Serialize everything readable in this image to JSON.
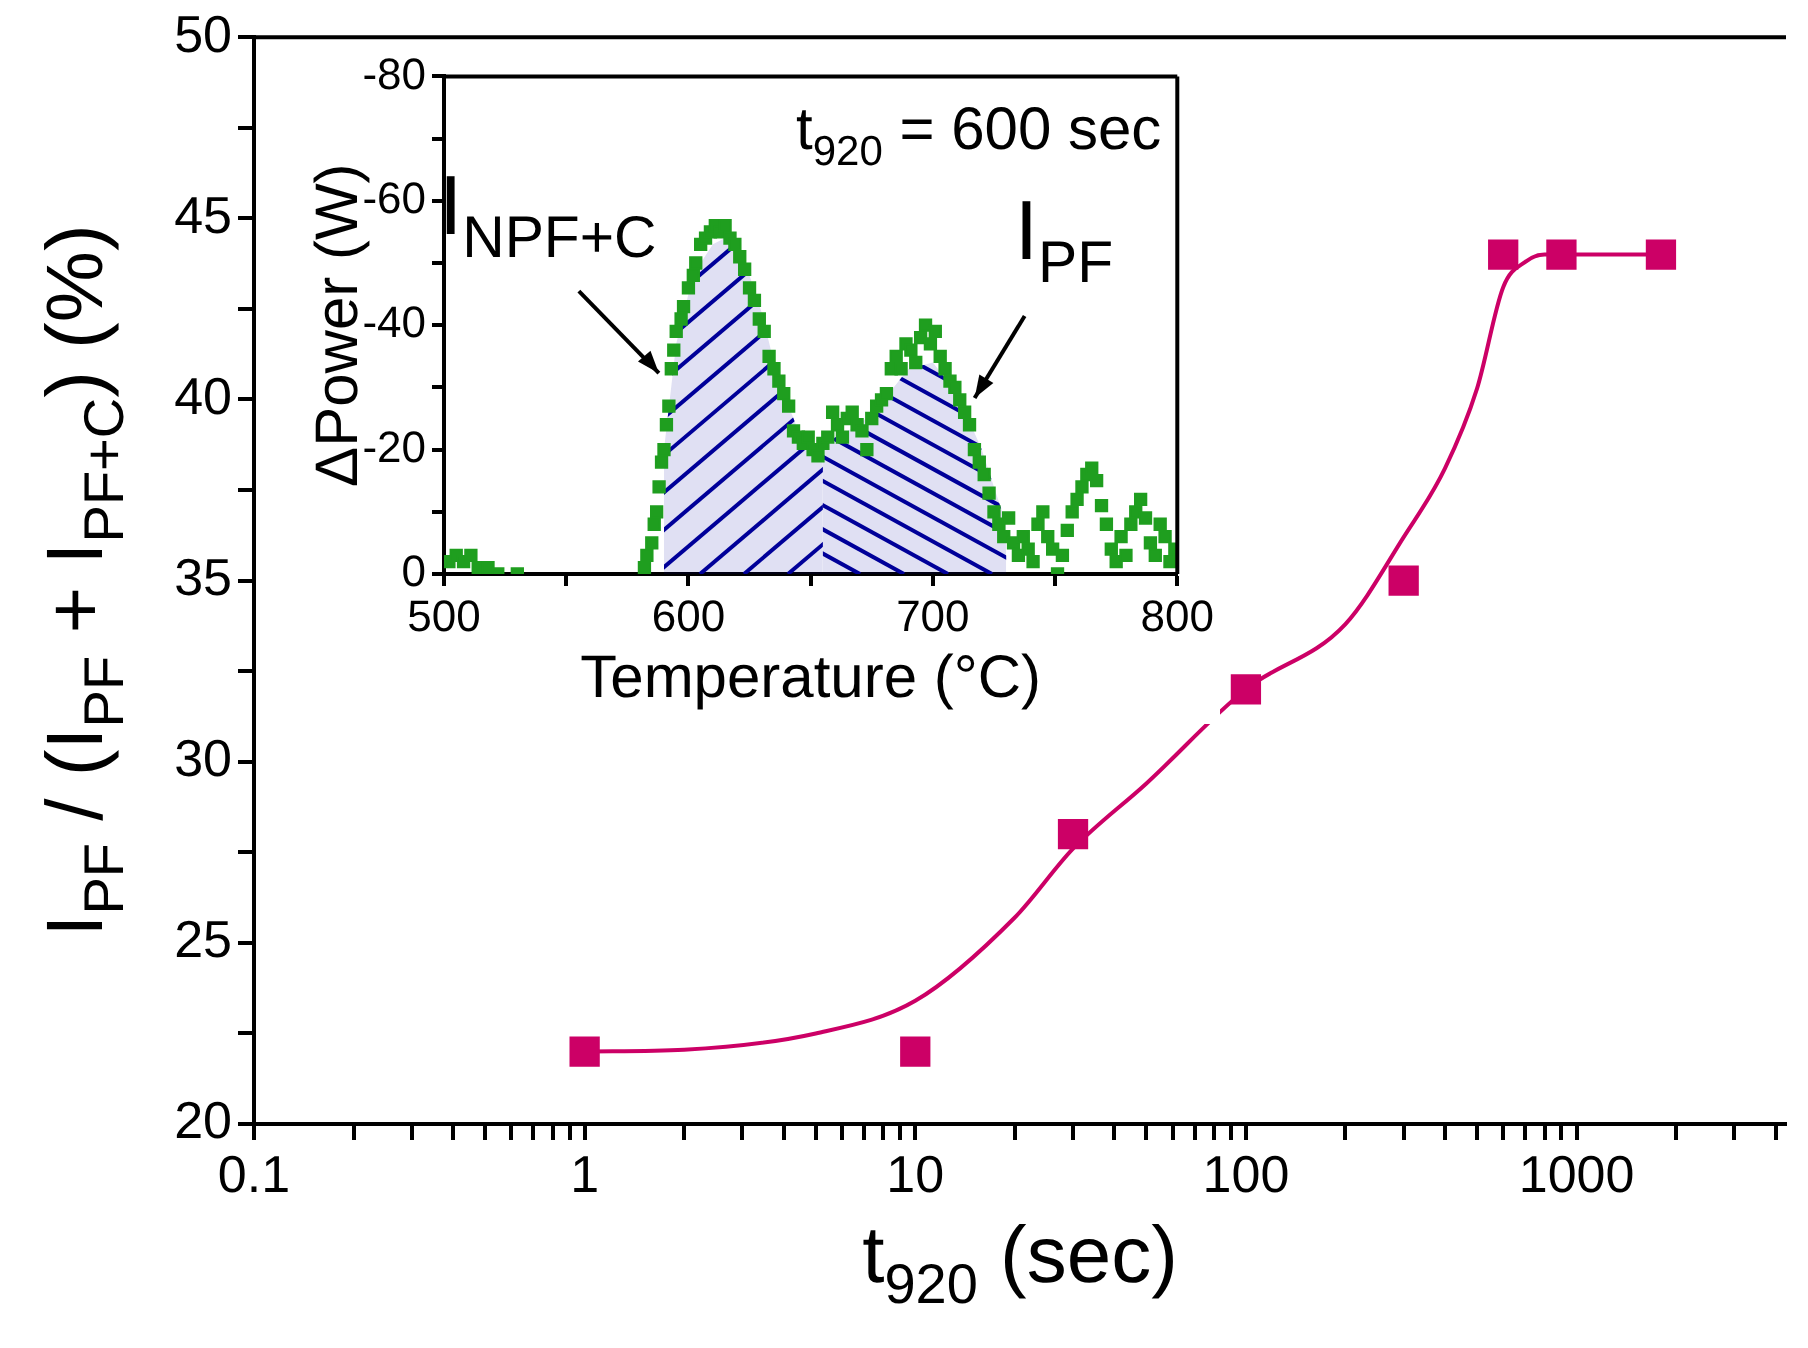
{
  "chart_data": [
    {
      "type": "scatter",
      "xlabel": "t$_{920}$ (sec)",
      "ylabel": "I$_{PF}$ / (I$_{PF}$ + I$_{PF+C}$) (%)",
      "log": "x",
      "marker": "square",
      "grid": false,
      "legend": false,
      "xlim": [
        0.1,
        4300
      ],
      "xticks": [
        0.1,
        {
          "value": 0.2,
          "label": null
        },
        {
          "value": 0.3,
          "label": null
        },
        {
          "value": 0.4,
          "label": null
        },
        {
          "value": 0.5,
          "label": null
        },
        {
          "value": 0.6,
          "label": null
        },
        {
          "value": 0.7,
          "label": null
        },
        {
          "value": 0.8,
          "label": null
        },
        {
          "value": 0.9,
          "label": null
        },
        1,
        {
          "value": 2,
          "label": null
        },
        {
          "value": 3,
          "label": null
        },
        {
          "value": 4,
          "label": null
        },
        {
          "value": 5,
          "label": null
        },
        {
          "value": 6,
          "label": null
        },
        {
          "value": 7,
          "label": null
        },
        {
          "value": 8,
          "label": null
        },
        {
          "value": 9,
          "label": null
        },
        10,
        {
          "value": 20,
          "label": null
        },
        {
          "value": 30,
          "label": null
        },
        {
          "value": 40,
          "label": null
        },
        {
          "value": 50,
          "label": null
        },
        {
          "value": 60,
          "label": null
        },
        {
          "value": 70,
          "label": null
        },
        {
          "value": 80,
          "label": null
        },
        {
          "value": 90,
          "label": null
        },
        100,
        {
          "value": 200,
          "label": null
        },
        {
          "value": 300,
          "label": null
        },
        {
          "value": 400,
          "label": null
        },
        {
          "value": 500,
          "label": null
        },
        {
          "value": 600,
          "label": null
        },
        {
          "value": 700,
          "label": null
        },
        {
          "value": 800,
          "label": null
        },
        {
          "value": 900,
          "label": null
        },
        1000,
        {
          "value": 2000,
          "label": null
        },
        {
          "value": 3000,
          "label": null
        },
        {
          "value": 4000,
          "label": null
        }
      ],
      "ylim": [
        20,
        50
      ],
      "yticks": [
        20,
        {
          "value": 22.5,
          "label": null
        },
        25,
        {
          "value": 27.5,
          "label": null
        },
        30,
        {
          "value": 32.5,
          "label": null
        },
        35,
        {
          "value": 37.5,
          "label": null
        },
        40,
        {
          "value": 42.5,
          "label": null
        },
        45,
        {
          "value": 47.5,
          "label": null
        },
        50
      ],
      "series": [
        {
          "color": "#cc0066",
          "x": [
            1,
            10,
            30,
            100,
            300,
            600,
            900,
            1800
          ],
          "values": [
            22,
            22,
            28,
            32,
            35,
            44,
            44,
            44
          ]
        },
        {
          "type": "line",
          "marker": "none",
          "color": "#cc0066",
          "x": [
            1,
            2,
            5,
            10,
            20,
            30,
            50,
            100,
            200,
            300,
            400,
            500,
            600,
            700,
            800,
            1800
          ],
          "values": [
            22,
            22.05,
            22.5,
            23.4,
            25.7,
            27.6,
            29.4,
            32,
            33.8,
            36.2,
            38.1,
            40.3,
            43.1,
            43.8,
            44,
            44
          ]
        }
      ]
    },
    {
      "type": "scatter",
      "xlabel": "Temperature (°C)",
      "ylabel": "ΔPower (W)",
      "marker": "square",
      "grid": false,
      "legend": false,
      "xlim": [
        500,
        800
      ],
      "xticks": [
        500,
        {
          "value": 550,
          "label": null
        },
        600,
        {
          "value": 650,
          "label": null
        },
        700,
        {
          "value": 750,
          "label": null
        },
        800
      ],
      "ylim": [
        0,
        -80
      ],
      "yticks": [
        -80,
        {
          "value": -70,
          "label": null
        },
        -60,
        {
          "value": -50,
          "label": null
        },
        -40,
        {
          "value": -30,
          "label": null
        },
        -20,
        {
          "value": -10,
          "label": null
        },
        0
      ],
      "annotations": [
        "t$_{920}$ = 600 sec",
        {
          "text": "I$_{NPF+C}$",
          "x": 592,
          "y": -31
        },
        {
          "text": "I$_{PF}$",
          "x": 713,
          "y": -27
        }
      ],
      "series": [
        {
          "type": "area",
          "marker": "none",
          "color": "#000099",
          "x": [
            590,
            595,
            600,
            605,
            610,
            615,
            620,
            625,
            630,
            635,
            640,
            645,
            650,
            655
          ],
          "values": [
            -20,
            -37,
            -45,
            -50,
            -53,
            -54,
            -53,
            -48,
            -42,
            -34,
            -28,
            -23,
            -21,
            -20
          ]
        },
        {
          "type": "area",
          "marker": "none",
          "color": "#000099",
          "x": [
            655,
            660,
            670,
            680,
            690,
            700,
            710,
            720,
            730
          ],
          "values": [
            -20,
            -22,
            -24,
            -28,
            -33,
            -34,
            -29,
            -20,
            -8
          ]
        },
        {
          "color": "#1f9e1f",
          "x": [
            502,
            505,
            508,
            511,
            514,
            518,
            522,
            530,
            582,
            583,
            585,
            586,
            587,
            588,
            589,
            590,
            591,
            592,
            593,
            594,
            595,
            597,
            598,
            600,
            602,
            603,
            605,
            607,
            609,
            611,
            613,
            615,
            617,
            619,
            621,
            623,
            625,
            627,
            629,
            631,
            633,
            635,
            637,
            639,
            641,
            643,
            645,
            647,
            649,
            651,
            653,
            655,
            657,
            659,
            661,
            663,
            665,
            667,
            669,
            671,
            673,
            675,
            677,
            679,
            681,
            683,
            685,
            687,
            689,
            691,
            693,
            695,
            697,
            699,
            701,
            703,
            705,
            707,
            709,
            711,
            713,
            715,
            717,
            719,
            721,
            723,
            725,
            727,
            729,
            731,
            733,
            735,
            737,
            739,
            741,
            743,
            745,
            747,
            749,
            751,
            753,
            755,
            757,
            759,
            761,
            763,
            765,
            767,
            769,
            771,
            773,
            775,
            777,
            779,
            781,
            783,
            785,
            787,
            789,
            791,
            793,
            795,
            797,
            799
          ],
          "values": [
            -2,
            -3,
            -2,
            -3,
            -1,
            -1,
            0,
            0,
            -1,
            -3,
            -5,
            -8,
            -10,
            -14,
            -18,
            -20,
            -24,
            -27,
            -33,
            -36,
            -39,
            -41,
            -43,
            -46,
            -48,
            -50,
            -53,
            -54,
            -55,
            -56,
            -55,
            -56,
            -54,
            -53,
            -51,
            -49,
            -46,
            -44,
            -41,
            -39,
            -35,
            -33,
            -31,
            -29,
            -27,
            -23,
            -22,
            -21,
            -22,
            -20,
            -19,
            -21,
            -22,
            -26,
            -24,
            -22,
            -25,
            -26,
            -24,
            -23,
            -20,
            -25,
            -27,
            -28,
            -29,
            -33,
            -35,
            -33,
            -37,
            -36,
            -34,
            -38,
            -40,
            -37,
            -39,
            -35,
            -33,
            -31,
            -30,
            -28,
            -26,
            -24,
            -20,
            -18,
            -16,
            -13,
            -10,
            -8,
            -6,
            -9,
            -5,
            -3,
            -6,
            -4,
            -2,
            -8,
            -10,
            -6,
            -4,
            0,
            -3,
            -7,
            -10,
            -12,
            -14,
            -16,
            -17,
            -15,
            -11,
            -8,
            -4,
            -2,
            -6,
            -3,
            -8,
            -10,
            -12,
            -9,
            -5,
            -3,
            -8,
            -6,
            -2,
            -4
          ]
        }
      ]
    }
  ]
}
